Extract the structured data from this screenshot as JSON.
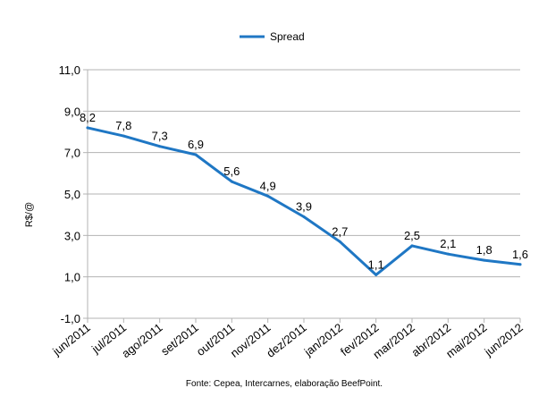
{
  "chart_data": {
    "type": "line",
    "categories": [
      "jun/2011",
      "jul/2011",
      "ago/2011",
      "set/2011",
      "out/2011",
      "nov/2011",
      "dez/2011",
      "jan/2012",
      "fev/2012",
      "mar/2012",
      "abr/2012",
      "mai/2012",
      "jun/2012"
    ],
    "series": [
      {
        "name": "Spread",
        "color": "#1f77c4",
        "values": [
          8.2,
          7.8,
          7.3,
          6.9,
          5.6,
          4.9,
          3.9,
          2.7,
          1.1,
          2.5,
          2.1,
          1.8,
          1.6
        ],
        "labels": [
          "8,2",
          "7,8",
          "7,3",
          "6,9",
          "5,6",
          "4,9",
          "3,9",
          "2,7",
          "1,1",
          "2,5",
          "2,1",
          "1,8",
          "1,6"
        ]
      }
    ],
    "ylabel": "R$/@",
    "ylim": [
      -1,
      11
    ],
    "yticks": [
      -1,
      1,
      3,
      5,
      7,
      9,
      11
    ],
    "ytick_labels": [
      "-1,0",
      "1,0",
      "3,0",
      "5,0",
      "7,0",
      "9,0",
      "11,0"
    ],
    "grid": true,
    "legend": "top-center",
    "source": "Fonte: Cepea, Intercarnes, elaboração BeefPoint."
  }
}
